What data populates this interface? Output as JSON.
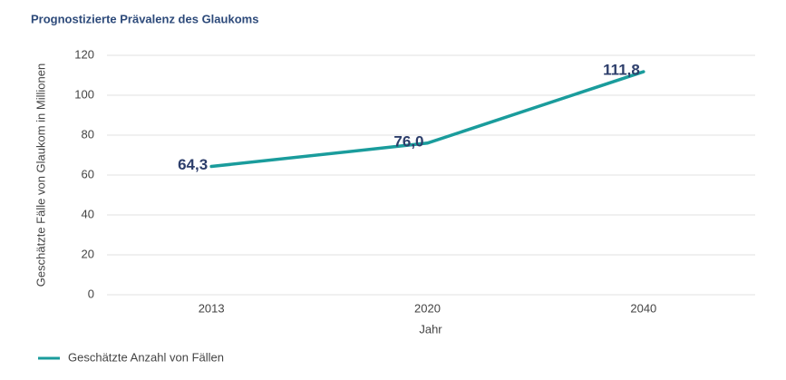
{
  "chart_data": {
    "type": "line",
    "title": "Prognostizierte Prävalenz des Glaukoms",
    "x_label": "Jahr",
    "y_label": "Geschätzte Fälle von Glaukom in Millionen",
    "categories": [
      "2013",
      "2020",
      "2040"
    ],
    "series": [
      {
        "name": "Geschätzte Anzahl von Fällen",
        "color": "#1a9c9c",
        "values": [
          64.3,
          76.0,
          111.8
        ],
        "value_labels": [
          "64,3",
          "76,0",
          "111,8"
        ]
      }
    ],
    "ylim": [
      0,
      120
    ],
    "yticks": [
      0,
      20,
      40,
      60,
      80,
      100,
      120
    ],
    "grid": true,
    "legend": "bottom-left"
  }
}
